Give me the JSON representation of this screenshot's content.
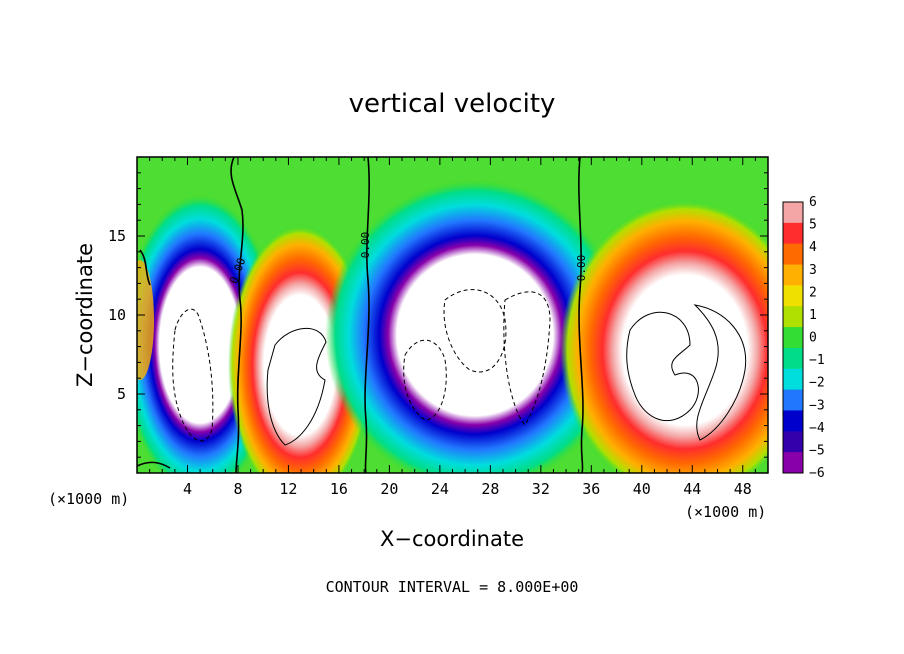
{
  "chart_data": {
    "type": "heatmap",
    "title": "vertical velocity",
    "xlabel": "X−coordinate",
    "ylabel": "Z−coordinate",
    "x_unit": "(×1000 m)",
    "z_unit": "(×1000 m)",
    "xlim": [
      0,
      50
    ],
    "ylim": [
      0,
      20
    ],
    "x_ticks": [
      4,
      8,
      12,
      16,
      20,
      24,
      28,
      32,
      36,
      40,
      44,
      48
    ],
    "y_ticks": [
      5,
      10,
      15
    ],
    "colorbar": {
      "levels": [
        6,
        5,
        4,
        3,
        2,
        1,
        0,
        -1,
        -2,
        -3,
        -4,
        -5,
        -6
      ],
      "level_labels": [
        "6",
        "5",
        "4",
        "3",
        "2",
        "1",
        "0",
        "−1",
        "−2",
        "−3",
        "−4",
        "−5",
        "−6"
      ],
      "colors": [
        "#f4a6a6",
        "#ff2d2d",
        "#ff6a00",
        "#ffb000",
        "#f0e000",
        "#b0e000",
        "#33dd33",
        "#00dd88",
        "#00dddd",
        "#2277ff",
        "#0000cc",
        "#3300aa",
        "#8800aa"
      ]
    },
    "contour_label": "0.00",
    "contour_label_positions_x": [
      8.5,
      18,
      35
    ],
    "updrafts": [
      {
        "x_center": 12.5,
        "z_center": 6.5,
        "max": "> 6"
      },
      {
        "x_center": 43,
        "z_center": 7.5,
        "max": "> 6"
      }
    ],
    "downdrafts": [
      {
        "x_center": 5,
        "z_center": 6,
        "min": "< -6"
      },
      {
        "x_center": 27.5,
        "z_center": 8,
        "min": "< -6"
      }
    ],
    "footer": "CONTOUR INTERVAL =  8.000E+00"
  }
}
